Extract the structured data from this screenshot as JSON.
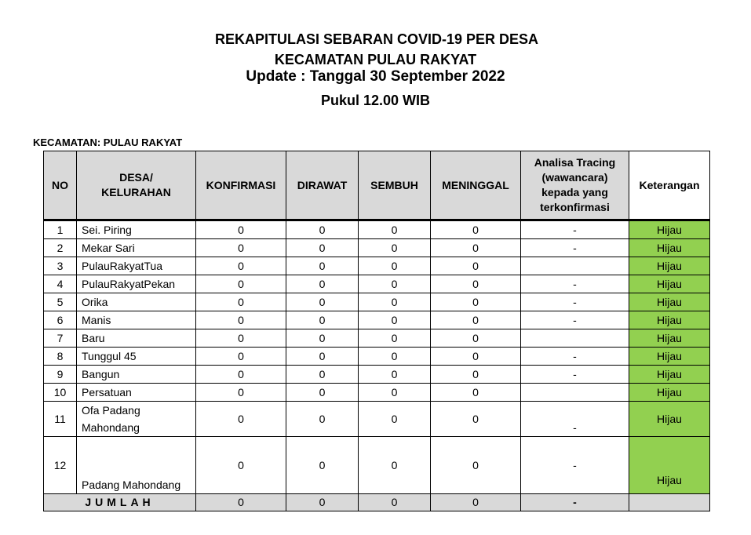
{
  "header": {
    "line1": "REKAPITULASI SEBARAN COVID-19 PER DESA",
    "line2": "KECAMATAN PULAU RAKYAT",
    "line3": "Update : Tanggal 30 September 2022",
    "line4": "Pukul 12.00 WIB"
  },
  "kecamatan_label": "KECAMATAN: PULAU RAKYAT",
  "colors": {
    "status_green": "#92d050",
    "header_grey": "#d9d9d9"
  },
  "table": {
    "columns": [
      "NO",
      "DESA/ KELURAHAN",
      "KONFIRMASI",
      "DIRAWAT",
      "SEMBUH",
      "MENINGGAL",
      "Analisa Tracing (wawancara) kepada yang terkonfirmasi",
      "Keterangan"
    ],
    "rows": [
      {
        "no": "1",
        "desa": "Sei. Piring",
        "konfirmasi": "0",
        "dirawat": "0",
        "sembuh": "0",
        "meninggal": "0",
        "tracing": "-",
        "keterangan": "Hijau"
      },
      {
        "no": "2",
        "desa": "Mekar Sari",
        "konfirmasi": "0",
        "dirawat": "0",
        "sembuh": "0",
        "meninggal": "0",
        "tracing": "-",
        "keterangan": "Hijau"
      },
      {
        "no": "3",
        "desa": "PulauRakyatTua",
        "konfirmasi": "0",
        "dirawat": "0",
        "sembuh": "0",
        "meninggal": "0",
        "tracing": "",
        "keterangan": "Hijau"
      },
      {
        "no": "4",
        "desa": "PulauRakyatPekan",
        "konfirmasi": "0",
        "dirawat": "0",
        "sembuh": "0",
        "meninggal": "0",
        "tracing": "-",
        "keterangan": "Hijau"
      },
      {
        "no": "5",
        "desa": "Orika",
        "konfirmasi": "0",
        "dirawat": "0",
        "sembuh": "0",
        "meninggal": "0",
        "tracing": "-",
        "keterangan": "Hijau"
      },
      {
        "no": "6",
        "desa": "Manis",
        "konfirmasi": "0",
        "dirawat": "0",
        "sembuh": "0",
        "meninggal": "0",
        "tracing": "-",
        "keterangan": "Hijau"
      },
      {
        "no": "7",
        "desa": "Baru",
        "konfirmasi": "0",
        "dirawat": "0",
        "sembuh": "0",
        "meninggal": "0",
        "tracing": "",
        "keterangan": "Hijau"
      },
      {
        "no": "8",
        "desa": "Tunggul 45",
        "konfirmasi": "0",
        "dirawat": "0",
        "sembuh": "0",
        "meninggal": "0",
        "tracing": "-",
        "keterangan": "Hijau"
      },
      {
        "no": "9",
        "desa": "Bangun",
        "konfirmasi": "0",
        "dirawat": "0",
        "sembuh": "0",
        "meninggal": "0",
        "tracing": "-",
        "keterangan": "Hijau"
      },
      {
        "no": "10",
        "desa": "Persatuan",
        "konfirmasi": "0",
        "dirawat": "0",
        "sembuh": "0",
        "meninggal": "0",
        "tracing": "",
        "keterangan": "Hijau"
      },
      {
        "no": "11",
        "desa": "Ofa Padang Mahondang",
        "konfirmasi": "0",
        "dirawat": "0",
        "sembuh": "0",
        "meninggal": "0",
        "tracing": "-",
        "keterangan": "Hijau"
      },
      {
        "no": "12",
        "desa": "Padang Mahondang",
        "konfirmasi": "0",
        "dirawat": "0",
        "sembuh": "0",
        "meninggal": "0",
        "tracing": "-",
        "keterangan": "Hijau"
      }
    ],
    "total": {
      "label": "JUMLAH",
      "konfirmasi": "0",
      "dirawat": "0",
      "sembuh": "0",
      "meninggal": "0",
      "tracing": "-",
      "keterangan": ""
    }
  }
}
